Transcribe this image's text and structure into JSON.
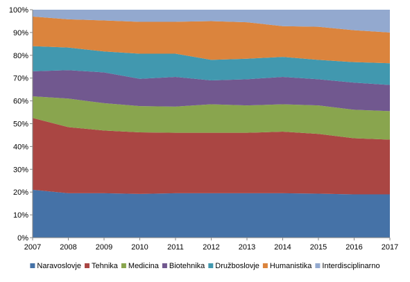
{
  "chart_data": {
    "type": "area",
    "stacked_percent": true,
    "x": [
      "2007",
      "2008",
      "2009",
      "2010",
      "2011",
      "2012",
      "2013",
      "2014",
      "2015",
      "2016",
      "2017"
    ],
    "y_ticks": [
      "0%",
      "10%",
      "20%",
      "30%",
      "40%",
      "50%",
      "60%",
      "70%",
      "80%",
      "90%",
      "100%"
    ],
    "ylim": [
      0,
      100
    ],
    "grid": false,
    "legend_position": "bottom",
    "series": [
      {
        "name": "Naravoslovje",
        "color": "#4572A7",
        "values": [
          21.0,
          19.5,
          19.5,
          19.2,
          19.5,
          19.5,
          19.5,
          19.5,
          19.3,
          19.0,
          19.0
        ]
      },
      {
        "name": "Tehnika",
        "color": "#AA4643",
        "values": [
          31.5,
          29.0,
          27.5,
          27.0,
          26.5,
          26.5,
          26.5,
          27.0,
          26.2,
          24.6,
          24.0
        ]
      },
      {
        "name": "Medicina",
        "color": "#89A54E",
        "values": [
          9.5,
          12.5,
          12.0,
          11.5,
          11.5,
          12.5,
          12.0,
          12.0,
          12.5,
          12.5,
          12.5
        ]
      },
      {
        "name": "Biotehnika",
        "color": "#71588F",
        "values": [
          11.0,
          12.5,
          13.5,
          12.0,
          13.0,
          10.5,
          11.5,
          12.0,
          11.5,
          11.9,
          11.5
        ]
      },
      {
        "name": "Družboslovje",
        "color": "#4198AF",
        "values": [
          11.0,
          9.9,
          9.2,
          11.0,
          10.2,
          9.0,
          9.0,
          8.8,
          8.5,
          9.0,
          9.5
        ]
      },
      {
        "name": "Humanistika",
        "color": "#DB843D",
        "values": [
          13.0,
          12.4,
          13.6,
          14.0,
          14.0,
          17.0,
          16.0,
          13.5,
          14.5,
          14.0,
          13.5
        ]
      },
      {
        "name": "Interdisciplinarno",
        "color": "#93A9CF",
        "values": [
          3.0,
          4.2,
          4.7,
          5.3,
          5.3,
          5.0,
          5.5,
          7.2,
          7.5,
          9.0,
          10.0
        ]
      }
    ]
  }
}
